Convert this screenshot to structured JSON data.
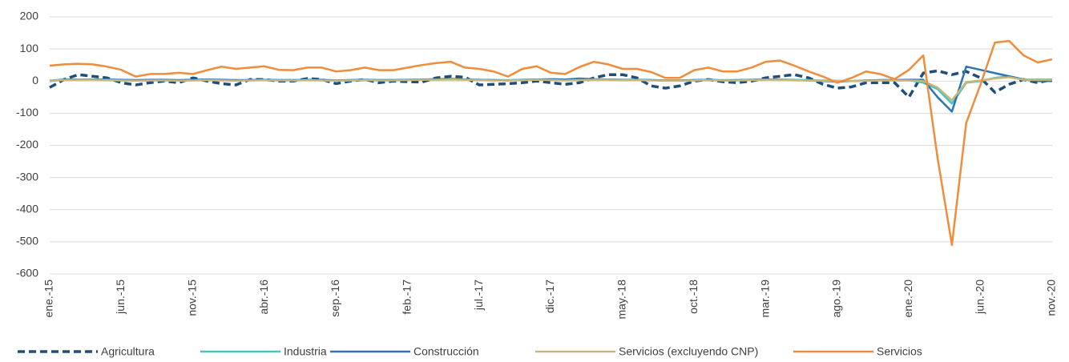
{
  "chart_data": {
    "type": "line",
    "categories": [
      "ene.-15",
      null,
      null,
      null,
      null,
      "jun.-15",
      null,
      null,
      null,
      null,
      "nov.-15",
      null,
      null,
      null,
      null,
      "abr.-16",
      null,
      null,
      null,
      null,
      "sep.-16",
      null,
      null,
      null,
      null,
      "feb.-17",
      null,
      null,
      null,
      null,
      "jul.-17",
      null,
      null,
      null,
      null,
      "dic.-17",
      null,
      null,
      null,
      null,
      "may.-18",
      null,
      null,
      null,
      null,
      "oct.-18",
      null,
      null,
      null,
      null,
      "mar.-19",
      null,
      null,
      null,
      null,
      "ago.-19",
      null,
      null,
      null,
      null,
      "ene.-20",
      null,
      null,
      null,
      null,
      "jun.-20",
      null,
      null,
      null,
      null,
      "nov.-20"
    ],
    "ylim": [
      -600,
      200
    ],
    "yticks": [
      -600,
      -500,
      -400,
      -300,
      -200,
      -100,
      0,
      100,
      200
    ],
    "grid": true,
    "legend": "bottom",
    "series": [
      {
        "name": "Agricultura",
        "color": "#1f4e79",
        "dashed": true,
        "values": [
          -20,
          5,
          20,
          15,
          10,
          -5,
          -12,
          -5,
          0,
          -5,
          10,
          0,
          -8,
          -12,
          5,
          5,
          0,
          0,
          8,
          5,
          -8,
          0,
          5,
          -5,
          0,
          -2,
          -3,
          10,
          15,
          12,
          -12,
          -10,
          -8,
          -5,
          0,
          -5,
          -10,
          -5,
          10,
          20,
          20,
          10,
          -15,
          -22,
          -15,
          0,
          5,
          -2,
          -5,
          0,
          10,
          15,
          20,
          10,
          -10,
          -22,
          -18,
          -5,
          -5,
          -5,
          -50,
          25,
          32,
          20,
          30,
          10,
          -35,
          -10,
          5,
          -5,
          5
        ]
      },
      {
        "name": "Industria",
        "color": "#3cc8c8",
        "dashed": false,
        "values": [
          2,
          4,
          5,
          5,
          4,
          3,
          2,
          3,
          3,
          2,
          3,
          4,
          3,
          2,
          3,
          4,
          3,
          3,
          4,
          3,
          2,
          3,
          4,
          3,
          3,
          4,
          5,
          5,
          6,
          5,
          4,
          3,
          3,
          4,
          5,
          4,
          3,
          4,
          5,
          5,
          4,
          4,
          3,
          2,
          2,
          3,
          4,
          3,
          3,
          4,
          5,
          5,
          4,
          3,
          2,
          1,
          0,
          2,
          3,
          3,
          3,
          -5,
          -25,
          -70,
          -5,
          0,
          10,
          15,
          5,
          5,
          5
        ]
      },
      {
        "name": "Construcción",
        "color": "#2e75b6",
        "dashed": false,
        "values": [
          0,
          5,
          5,
          5,
          5,
          4,
          3,
          4,
          4,
          3,
          4,
          5,
          4,
          3,
          3,
          4,
          3,
          3,
          4,
          4,
          2,
          3,
          4,
          3,
          3,
          4,
          5,
          6,
          7,
          5,
          4,
          3,
          2,
          4,
          5,
          6,
          5,
          8,
          6,
          5,
          4,
          4,
          3,
          2,
          2,
          3,
          4,
          2,
          3,
          4,
          5,
          5,
          3,
          2,
          0,
          -2,
          0,
          2,
          3,
          3,
          4,
          4,
          -50,
          -95,
          45,
          35,
          25,
          15,
          5,
          0,
          0
        ]
      },
      {
        "name": "Servicios (excluyendo CNP)",
        "color": "#c9b77a",
        "dashed": false,
        "values": [
          1,
          3,
          4,
          4,
          3,
          2,
          1,
          2,
          2,
          1,
          2,
          3,
          2,
          1,
          2,
          3,
          2,
          2,
          3,
          2,
          1,
          2,
          3,
          2,
          2,
          3,
          4,
          4,
          5,
          4,
          3,
          2,
          2,
          3,
          4,
          3,
          2,
          3,
          4,
          4,
          3,
          3,
          2,
          1,
          1,
          2,
          3,
          2,
          2,
          3,
          4,
          4,
          3,
          2,
          1,
          0,
          0,
          1,
          2,
          2,
          2,
          0,
          -20,
          -60,
          -3,
          2,
          8,
          12,
          4,
          4,
          4
        ]
      },
      {
        "name": "Servicios",
        "color": "#f08c3a",
        "dashed": false,
        "values": [
          48,
          52,
          54,
          52,
          45,
          35,
          14,
          22,
          22,
          26,
          22,
          34,
          45,
          38,
          42,
          46,
          35,
          34,
          42,
          42,
          30,
          34,
          42,
          34,
          34,
          42,
          50,
          56,
          60,
          42,
          38,
          30,
          14,
          38,
          46,
          26,
          22,
          44,
          60,
          52,
          38,
          38,
          28,
          10,
          10,
          34,
          42,
          30,
          30,
          42,
          60,
          64,
          48,
          30,
          14,
          -5,
          10,
          30,
          22,
          6,
          35,
          80,
          -240,
          -510,
          -130,
          -10,
          120,
          125,
          80,
          58,
          68
        ]
      }
    ]
  }
}
